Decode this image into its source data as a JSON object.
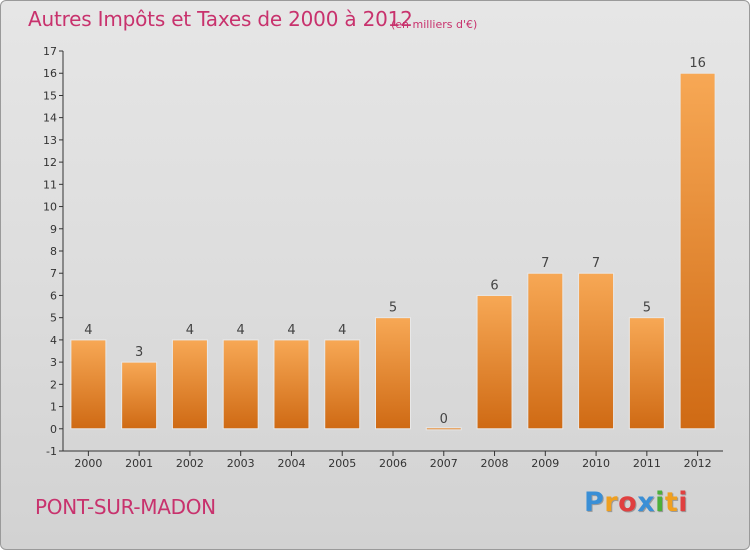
{
  "chart_data": {
    "type": "bar",
    "title": "Autres Impôts et Taxes de 2000 à 2012",
    "subtitle": "(en milliers d'€)",
    "categories": [
      "2000",
      "2001",
      "2002",
      "2003",
      "2004",
      "2005",
      "2006",
      "2007",
      "2008",
      "2009",
      "2010",
      "2011",
      "2012"
    ],
    "values": [
      4,
      3,
      4,
      4,
      4,
      4,
      5,
      0,
      6,
      7,
      7,
      5,
      16
    ],
    "ylim": [
      -1,
      17
    ],
    "yticks": [
      -1,
      0,
      1,
      2,
      3,
      4,
      5,
      6,
      7,
      8,
      9,
      10,
      11,
      12,
      13,
      14,
      15,
      16,
      17
    ],
    "grid": false,
    "bar_color": "#f0923a",
    "title_color": "#c8326d"
  },
  "place": "PONT-SUR-MADON",
  "brand": {
    "letters": [
      "P",
      "r",
      "o",
      "x",
      "i",
      "t",
      "i"
    ],
    "colors": [
      "#3a8fd6",
      "#f0a020",
      "#e04040",
      "#3a8fd6",
      "#4caf3a",
      "#f0a020",
      "#e04040"
    ]
  }
}
